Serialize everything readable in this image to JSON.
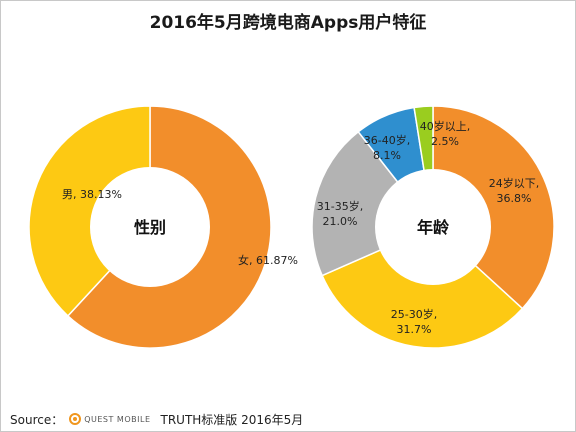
{
  "title": "2016年5月跨境电商Apps用户特征",
  "footer": {
    "source_label": "Source：",
    "brand": "QUEST MOBILE",
    "edition": "TRUTH标准版 2016年5月"
  },
  "chart_data": [
    {
      "type": "pie",
      "center_label": "性别",
      "slices": [
        {
          "label": "女, 61.87%",
          "value": 61.87,
          "color": "#f28e2b"
        },
        {
          "label": "男, 38.13%",
          "value": 38.13,
          "color": "#fdc913"
        }
      ]
    },
    {
      "type": "pie",
      "center_label": "年龄",
      "slices": [
        {
          "label": "24岁以下,\n36.8%",
          "value": 36.8,
          "color": "#f28e2b"
        },
        {
          "label": "25-30岁,\n31.7%",
          "value": 31.7,
          "color": "#fdc913"
        },
        {
          "label": "31-35岁,\n21.0%",
          "value": 21.0,
          "color": "#b3b3b3"
        },
        {
          "label": "36-40岁,\n8.1%",
          "value": 8.1,
          "color": "#2f8fcf"
        },
        {
          "label": "40岁以上,\n2.5%",
          "value": 2.5,
          "color": "#9acd1f"
        }
      ]
    }
  ]
}
